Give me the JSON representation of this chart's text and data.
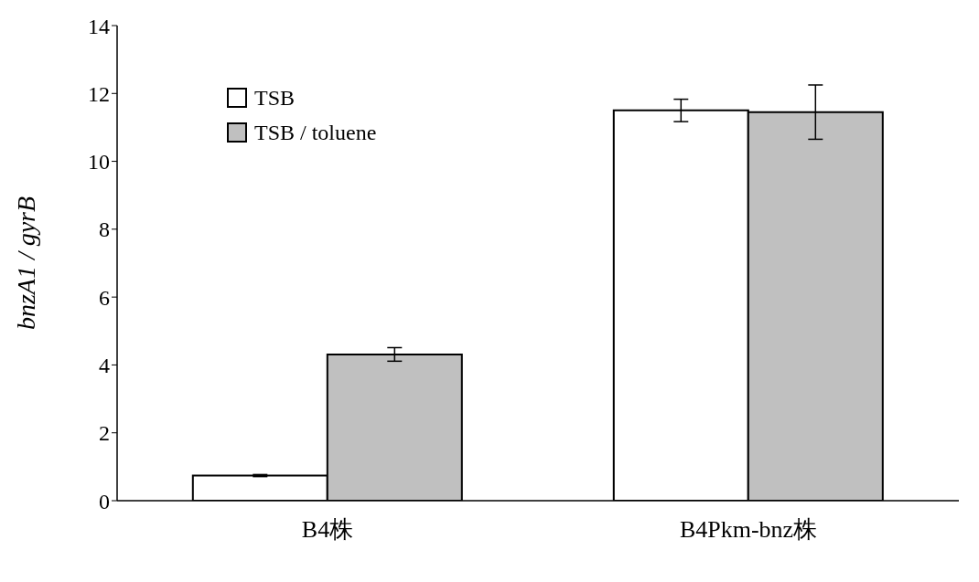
{
  "chart_data": {
    "type": "bar",
    "ylabel": "bnzA1 / gyrB",
    "categories": [
      "B4株",
      "B4Pkm-bnz株"
    ],
    "series": [
      {
        "name": "TSB",
        "color": "#ffffff",
        "values": [
          0.74,
          11.5
        ],
        "errors": [
          0.03,
          0.33
        ]
      },
      {
        "name": "TSB / toluene",
        "color": "#c0c0c0",
        "values": [
          4.31,
          11.45
        ],
        "errors": [
          0.2,
          0.8
        ]
      }
    ],
    "ylim": [
      0,
      14
    ],
    "yticks": [
      0,
      2,
      4,
      6,
      8,
      10,
      12,
      14
    ],
    "legend": "top left",
    "grid": false
  }
}
